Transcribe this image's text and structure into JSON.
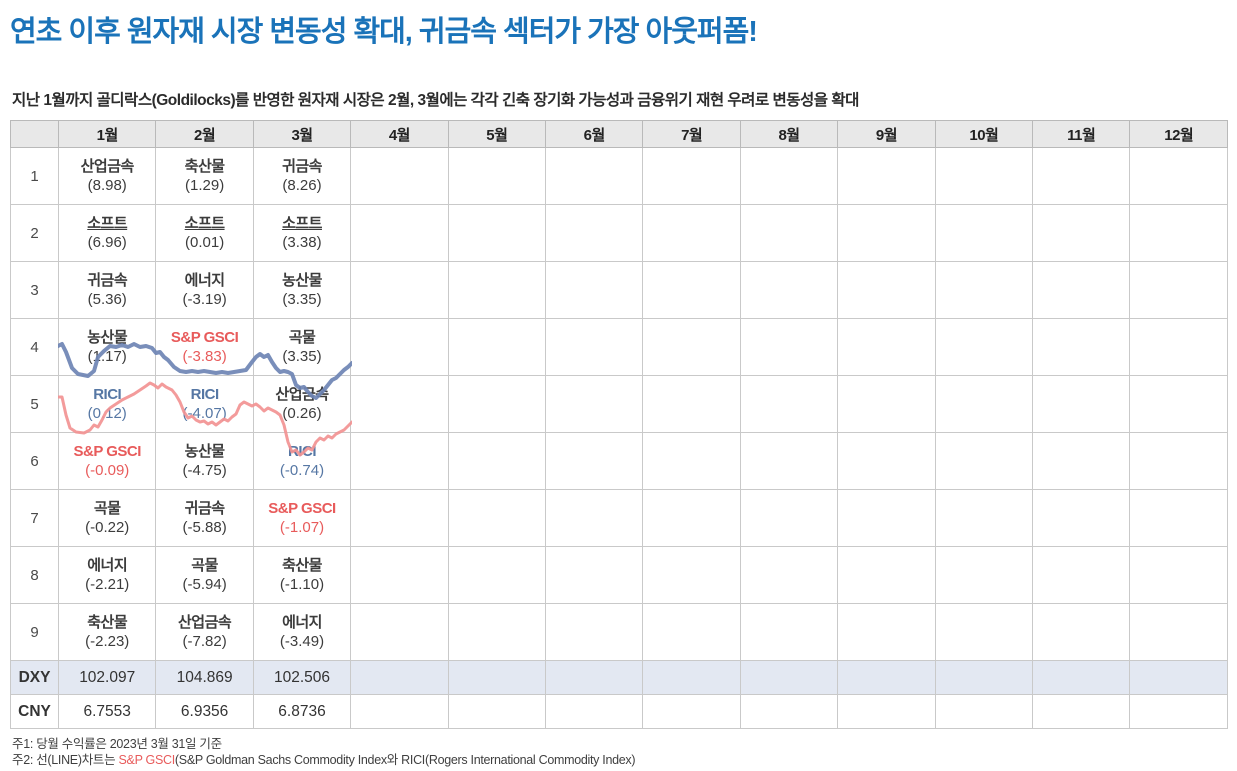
{
  "page": {
    "title": "연초 이후 원자재 시장 변동성 확대, 귀금속 섹터가 가장 아웃퍼폼!",
    "subtitle": "지난 1월까지 골디락스(Goldilocks)를 반영한 원자재 시장은 2월, 3월에는 각각 긴축 장기화 가능성과 금융위기 재현 우려로 변동성을 확대"
  },
  "colors": {
    "title_blue": "#1a73b9",
    "accent_red": "#e85b5b",
    "accent_blue": "#5677a4",
    "line_red": "#f29393",
    "line_blue": "#6e84b4",
    "header_bg": "#e8e8e8",
    "dxy_row_bg": "#e3e8f2",
    "grid_border": "#c9c9c9"
  },
  "table": {
    "corner_label": "",
    "months": [
      "1월",
      "2월",
      "3월",
      "4월",
      "5월",
      "6월",
      "7월",
      "8월",
      "9월",
      "10월",
      "11월",
      "12월"
    ],
    "rank_rows": [
      {
        "rank": "1",
        "cells": [
          {
            "name": "산업금속",
            "value": "(8.98)",
            "style": "default"
          },
          {
            "name": "축산물",
            "value": "(1.29)",
            "style": "default"
          },
          {
            "name": "귀금속",
            "value": "(8.26)",
            "style": "default"
          }
        ]
      },
      {
        "rank": "2",
        "cells": [
          {
            "name": "소프트",
            "value": "(6.96)",
            "style": "underline"
          },
          {
            "name": "소프트",
            "value": "(0.01)",
            "style": "underline"
          },
          {
            "name": "소프트",
            "value": "(3.38)",
            "style": "underline"
          }
        ]
      },
      {
        "rank": "3",
        "cells": [
          {
            "name": "귀금속",
            "value": "(5.36)",
            "style": "default"
          },
          {
            "name": "에너지",
            "value": "(-3.19)",
            "style": "default"
          },
          {
            "name": "농산물",
            "value": "(3.35)",
            "style": "default"
          }
        ]
      },
      {
        "rank": "4",
        "cells": [
          {
            "name": "농산물",
            "value": "(1.17)",
            "style": "default"
          },
          {
            "name": "S&P GSCI",
            "value": "(-3.83)",
            "style": "red"
          },
          {
            "name": "곡물",
            "value": "(3.35)",
            "style": "default"
          }
        ]
      },
      {
        "rank": "5",
        "cells": [
          {
            "name": "RICI",
            "value": "(0.12)",
            "style": "blue"
          },
          {
            "name": "RICI",
            "value": "(-4.07)",
            "style": "blue"
          },
          {
            "name": "산업금속",
            "value": "(0.26)",
            "style": "default"
          }
        ]
      },
      {
        "rank": "6",
        "cells": [
          {
            "name": "S&P GSCI",
            "value": "(-0.09)",
            "style": "red"
          },
          {
            "name": "농산물",
            "value": "(-4.75)",
            "style": "default"
          },
          {
            "name": "RICI",
            "value": "(-0.74)",
            "style": "blue"
          }
        ]
      },
      {
        "rank": "7",
        "cells": [
          {
            "name": "곡물",
            "value": "(-0.22)",
            "style": "default"
          },
          {
            "name": "귀금속",
            "value": "(-5.88)",
            "style": "default"
          },
          {
            "name": "S&P GSCI",
            "value": "(-1.07)",
            "style": "red"
          }
        ]
      },
      {
        "rank": "8",
        "cells": [
          {
            "name": "에너지",
            "value": "(-2.21)",
            "style": "default"
          },
          {
            "name": "곡물",
            "value": "(-5.94)",
            "style": "default"
          },
          {
            "name": "축산물",
            "value": "(-1.10)",
            "style": "default"
          }
        ]
      },
      {
        "rank": "9",
        "cells": [
          {
            "name": "축산물",
            "value": "(-2.23)",
            "style": "default"
          },
          {
            "name": "산업금속",
            "value": "(-7.82)",
            "style": "default"
          },
          {
            "name": "에너지",
            "value": "(-3.49)",
            "style": "default"
          }
        ]
      }
    ],
    "index_rows": [
      {
        "label": "DXY",
        "values": [
          "102.097",
          "104.869",
          "102.506"
        ],
        "highlight": true
      },
      {
        "label": "CNY",
        "values": [
          "6.7553",
          "6.9356",
          "6.8736"
        ],
        "highlight": false
      }
    ]
  },
  "footnotes": {
    "note1": "주1: 당월 수익률은 2023년 3월 31일 기준",
    "note2_prefix": "주2: 선(LINE)차트는 ",
    "note2_red": "S&P GSCI",
    "note2_rest": "(S&P Goldman Sachs Commodity Index와 RICI(Rogers International Commodity Index)"
  },
  "chart_data": {
    "type": "line",
    "title": "",
    "x_span_months": [
      "1월",
      "2월",
      "3월"
    ],
    "note": "decorative daily index line chart overlaid on table columns 1월-3월; coordinates are px within a 294x135 overlay box",
    "legend_position": "none",
    "grid": false,
    "series": [
      {
        "name": "S&P GSCI",
        "color": "#f29393",
        "width": 3,
        "points": [
          [
            0,
            67
          ],
          [
            4,
            67
          ],
          [
            8,
            85
          ],
          [
            12,
            98
          ],
          [
            18,
            102
          ],
          [
            26,
            103
          ],
          [
            32,
            100
          ],
          [
            36,
            95
          ],
          [
            40,
            97
          ],
          [
            44,
            90
          ],
          [
            48,
            82
          ],
          [
            52,
            78
          ],
          [
            58,
            74
          ],
          [
            64,
            70
          ],
          [
            70,
            67
          ],
          [
            76,
            64
          ],
          [
            82,
            60
          ],
          [
            88,
            56
          ],
          [
            92,
            53
          ],
          [
            96,
            55
          ],
          [
            100,
            58
          ],
          [
            104,
            54
          ],
          [
            108,
            57
          ],
          [
            114,
            60
          ],
          [
            118,
            65
          ],
          [
            122,
            72
          ],
          [
            126,
            82
          ],
          [
            130,
            88
          ],
          [
            134,
            86
          ],
          [
            138,
            90
          ],
          [
            142,
            92
          ],
          [
            146,
            91
          ],
          [
            150,
            94
          ],
          [
            154,
            92
          ],
          [
            158,
            95
          ],
          [
            162,
            92
          ],
          [
            166,
            89
          ],
          [
            170,
            91
          ],
          [
            174,
            87
          ],
          [
            178,
            84
          ],
          [
            182,
            75
          ],
          [
            186,
            72
          ],
          [
            190,
            74
          ],
          [
            194,
            76
          ],
          [
            198,
            74
          ],
          [
            202,
            77
          ],
          [
            206,
            81
          ],
          [
            210,
            78
          ],
          [
            214,
            80
          ],
          [
            218,
            82
          ],
          [
            222,
            85
          ],
          [
            226,
            95
          ],
          [
            230,
            112
          ],
          [
            234,
            122
          ],
          [
            238,
            120
          ],
          [
            242,
            125
          ],
          [
            246,
            122
          ],
          [
            250,
            118
          ],
          [
            254,
            120
          ],
          [
            258,
            112
          ],
          [
            262,
            108
          ],
          [
            266,
            110
          ],
          [
            270,
            106
          ],
          [
            274,
            108
          ],
          [
            278,
            104
          ],
          [
            282,
            102
          ],
          [
            286,
            100
          ],
          [
            290,
            96
          ],
          [
            294,
            92
          ]
        ]
      },
      {
        "name": "RICI",
        "color": "#6e84b4",
        "width": 4,
        "points": [
          [
            0,
            16
          ],
          [
            4,
            14
          ],
          [
            8,
            22
          ],
          [
            14,
            38
          ],
          [
            20,
            44
          ],
          [
            30,
            46
          ],
          [
            36,
            41
          ],
          [
            40,
            27
          ],
          [
            46,
            21
          ],
          [
            52,
            16
          ],
          [
            58,
            17
          ],
          [
            64,
            15
          ],
          [
            70,
            17
          ],
          [
            76,
            14
          ],
          [
            82,
            17
          ],
          [
            88,
            16
          ],
          [
            94,
            18
          ],
          [
            98,
            23
          ],
          [
            102,
            22
          ],
          [
            106,
            27
          ],
          [
            110,
            30
          ],
          [
            116,
            37
          ],
          [
            122,
            41
          ],
          [
            128,
            42
          ],
          [
            134,
            41
          ],
          [
            140,
            42
          ],
          [
            146,
            41
          ],
          [
            152,
            42
          ],
          [
            158,
            43
          ],
          [
            164,
            42
          ],
          [
            170,
            43
          ],
          [
            176,
            42
          ],
          [
            182,
            41
          ],
          [
            188,
            40
          ],
          [
            194,
            32
          ],
          [
            198,
            27
          ],
          [
            202,
            24
          ],
          [
            206,
            27
          ],
          [
            210,
            25
          ],
          [
            214,
            32
          ],
          [
            218,
            38
          ],
          [
            222,
            42
          ],
          [
            226,
            41
          ],
          [
            230,
            42
          ],
          [
            234,
            44
          ],
          [
            238,
            55
          ],
          [
            242,
            58
          ],
          [
            246,
            57
          ],
          [
            250,
            62
          ],
          [
            254,
            66
          ],
          [
            258,
            68
          ],
          [
            262,
            64
          ],
          [
            266,
            60
          ],
          [
            270,
            55
          ],
          [
            274,
            50
          ],
          [
            278,
            48
          ],
          [
            282,
            44
          ],
          [
            286,
            40
          ],
          [
            290,
            37
          ],
          [
            294,
            33
          ]
        ]
      }
    ]
  }
}
